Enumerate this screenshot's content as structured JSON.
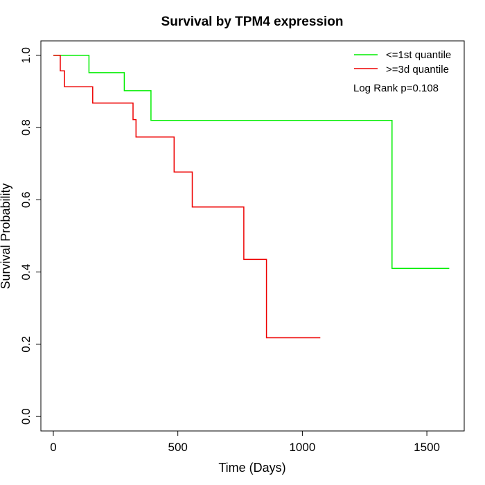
{
  "chart_data": {
    "type": "line",
    "subtype": "kaplan-meier-step",
    "title": "Survival by TPM4 expression",
    "xlabel": "Time (Days)",
    "ylabel": "Survival Probability",
    "xlim": [
      -50,
      1650
    ],
    "ylim": [
      -0.04,
      1.04
    ],
    "xticks": [
      0,
      500,
      1000,
      1500
    ],
    "yticks": [
      0.0,
      0.2,
      0.4,
      0.6,
      0.8,
      1.0
    ],
    "xtick_labels": [
      "0",
      "500",
      "1000",
      "1500"
    ],
    "ytick_labels": [
      "0.0",
      "0.2",
      "0.4",
      "0.6",
      "0.8",
      "1.0"
    ],
    "grid": false,
    "legend_position": "top-right",
    "annotation": "Log Rank p=0.108",
    "series": [
      {
        "name": "<=1st quantile",
        "color": "#00ee00",
        "x": [
          0,
          143,
          143,
          285,
          285,
          392,
          392,
          1360,
          1360,
          1590
        ],
        "y": [
          1.0,
          1.0,
          0.952,
          0.952,
          0.902,
          0.902,
          0.82,
          0.82,
          0.41,
          0.41
        ]
      },
      {
        "name": ">=3d quantile",
        "color": "#ee0000",
        "x": [
          0,
          28,
          28,
          45,
          45,
          158,
          158,
          320,
          320,
          332,
          332,
          485,
          485,
          558,
          558,
          765,
          765,
          856,
          856,
          1072
        ],
        "y": [
          1.0,
          1.0,
          0.957,
          0.957,
          0.913,
          0.913,
          0.868,
          0.868,
          0.822,
          0.822,
          0.774,
          0.774,
          0.677,
          0.677,
          0.58,
          0.58,
          0.435,
          0.435,
          0.218,
          0.218
        ]
      }
    ]
  }
}
